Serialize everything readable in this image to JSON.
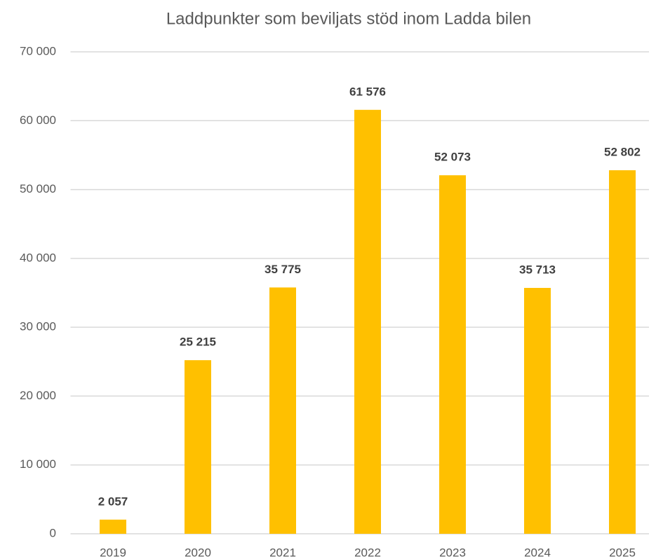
{
  "chart_data": {
    "type": "bar",
    "title": "Laddpunkter som beviljats stöd inom Ladda bilen",
    "categories": [
      "2019",
      "2020",
      "2021",
      "2022",
      "2023",
      "2024",
      "2025"
    ],
    "values": [
      2057,
      25215,
      35775,
      61576,
      52073,
      35713,
      52802
    ],
    "value_labels": [
      "2 057",
      "25 215",
      "35 775",
      "61 576",
      "52 073",
      "35 713",
      "52 802"
    ],
    "color": "#ffc000",
    "ylim": [
      0,
      70000
    ],
    "yticks": [
      0,
      {
        "value": 10000,
        "label": "10 000"
      },
      {
        "value": 20000,
        "label": "20 000"
      },
      {
        "value": 30000,
        "label": "30 000"
      },
      {
        "value": 40000,
        "label": "40 000"
      },
      {
        "value": 50000,
        "label": "50 000"
      },
      {
        "value": 60000,
        "label": "60 000"
      },
      {
        "value": 70000,
        "label": "70 000"
      }
    ],
    "grid": true
  }
}
